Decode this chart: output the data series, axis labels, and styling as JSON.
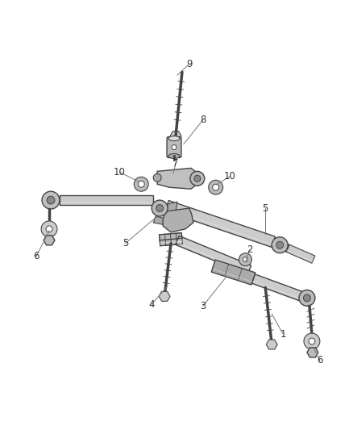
{
  "background_color": "#ffffff",
  "line_color": "#444444",
  "gray_fill": "#cccccc",
  "dark_fill": "#999999",
  "fig_width": 4.38,
  "fig_height": 5.33,
  "dpi": 100,
  "label_fontsize": 8.5,
  "label_color": "#333333"
}
